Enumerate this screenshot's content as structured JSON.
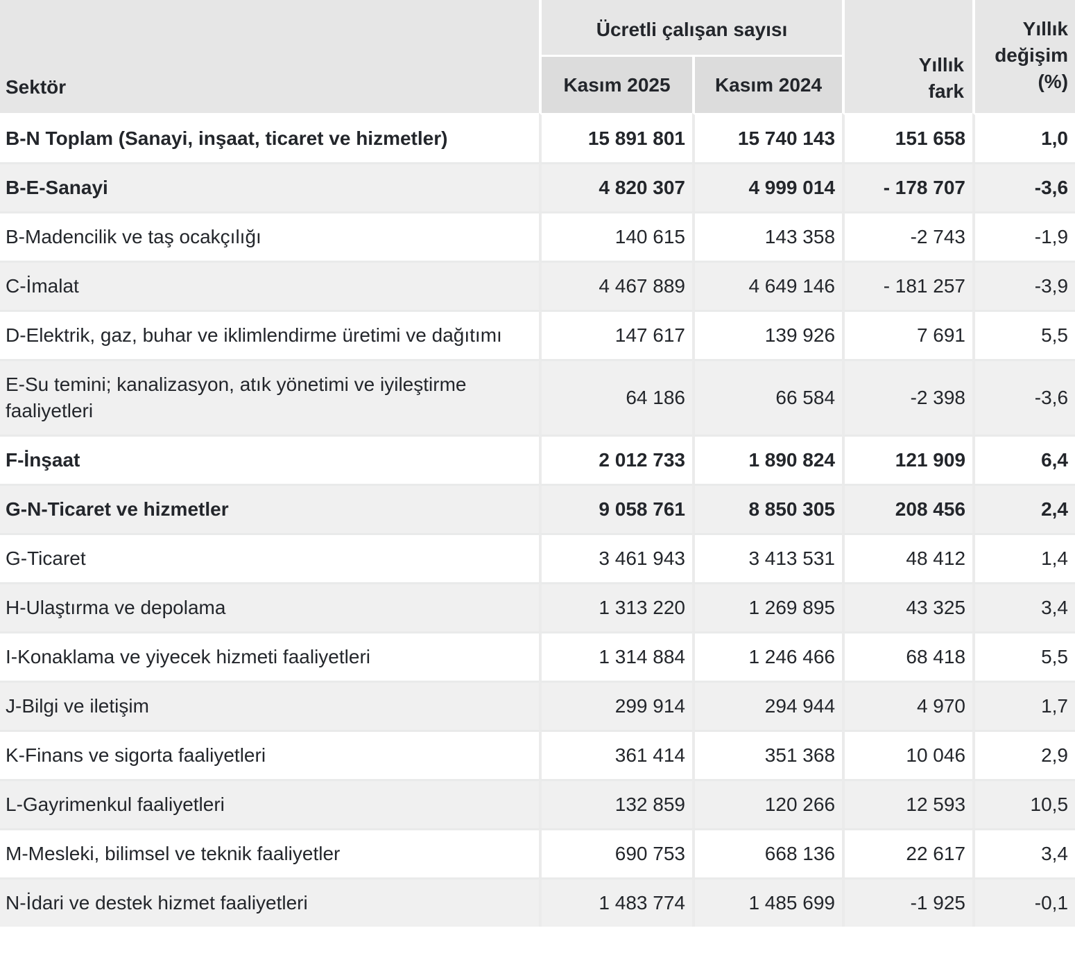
{
  "table": {
    "header": {
      "sektor": "Sektör",
      "ucretli_group": "Ücretli çalışan sayısı",
      "kasim_2025": "Kasım 2025",
      "kasim_2024": "Kasım 2024",
      "yillik_fark": "Yıllık\nfark",
      "yillik_degisim": "Yıllık\ndeğişim\n(%)"
    },
    "rows": [
      {
        "label": "B-N Toplam (Sanayi, inşaat, ticaret ve hizmetler)",
        "kasim_2025": "15 891 801",
        "kasim_2024": "15 740 143",
        "yillik_fark": "151 658",
        "yillik_degisim_pct": "1,0",
        "bold": true
      },
      {
        "label": "B-E-Sanayi",
        "kasim_2025": "4 820 307",
        "kasim_2024": "4 999 014",
        "yillik_fark": "- 178 707",
        "yillik_degisim_pct": "-3,6",
        "bold": true
      },
      {
        "label": "B-Madencilik ve taş ocakçılığı",
        "kasim_2025": "140 615",
        "kasim_2024": "143 358",
        "yillik_fark": "-2 743",
        "yillik_degisim_pct": "-1,9",
        "bold": false
      },
      {
        "label": "C-İmalat",
        "kasim_2025": "4 467 889",
        "kasim_2024": "4 649 146",
        "yillik_fark": "- 181 257",
        "yillik_degisim_pct": "-3,9",
        "bold": false
      },
      {
        "label": "D-Elektrik, gaz, buhar ve iklimlendirme üretimi ve dağıtımı",
        "kasim_2025": "147 617",
        "kasim_2024": "139 926",
        "yillik_fark": "7 691",
        "yillik_degisim_pct": "5,5",
        "bold": false
      },
      {
        "label": "E-Su temini; kanalizasyon, atık yönetimi ve iyileştirme faaliyetleri",
        "kasim_2025": "64 186",
        "kasim_2024": "66 584",
        "yillik_fark": "-2 398",
        "yillik_degisim_pct": "-3,6",
        "bold": false
      },
      {
        "label": "F-İnşaat",
        "kasim_2025": "2 012 733",
        "kasim_2024": "1 890 824",
        "yillik_fark": "121 909",
        "yillik_degisim_pct": "6,4",
        "bold": true
      },
      {
        "label": "G-N-Ticaret ve hizmetler",
        "kasim_2025": "9 058 761",
        "kasim_2024": "8 850 305",
        "yillik_fark": "208 456",
        "yillik_degisim_pct": "2,4",
        "bold": true
      },
      {
        "label": "G-Ticaret",
        "kasim_2025": "3 461 943",
        "kasim_2024": "3 413 531",
        "yillik_fark": "48 412",
        "yillik_degisim_pct": "1,4",
        "bold": false
      },
      {
        "label": "H-Ulaştırma ve depolama",
        "kasim_2025": "1 313 220",
        "kasim_2024": "1 269 895",
        "yillik_fark": "43 325",
        "yillik_degisim_pct": "3,4",
        "bold": false
      },
      {
        "label": "I-Konaklama ve yiyecek hizmeti faaliyetleri",
        "kasim_2025": "1 314 884",
        "kasim_2024": "1 246 466",
        "yillik_fark": "68 418",
        "yillik_degisim_pct": "5,5",
        "bold": false
      },
      {
        "label": "J-Bilgi ve iletişim",
        "kasim_2025": "299 914",
        "kasim_2024": "294 944",
        "yillik_fark": "4 970",
        "yillik_degisim_pct": "1,7",
        "bold": false
      },
      {
        "label": "K-Finans ve sigorta faaliyetleri",
        "kasim_2025": "361 414",
        "kasim_2024": "351 368",
        "yillik_fark": "10 046",
        "yillik_degisim_pct": "2,9",
        "bold": false
      },
      {
        "label": "L-Gayrimenkul faaliyetleri",
        "kasim_2025": "132 859",
        "kasim_2024": "120 266",
        "yillik_fark": "12 593",
        "yillik_degisim_pct": "10,5",
        "bold": false
      },
      {
        "label": "M-Mesleki, bilimsel ve teknik faaliyetler",
        "kasim_2025": "690 753",
        "kasim_2024": "668 136",
        "yillik_fark": "22 617",
        "yillik_degisim_pct": "3,4",
        "bold": false
      },
      {
        "label": "N-İdari ve destek hizmet faaliyetleri",
        "kasim_2025": "1 483 774",
        "kasim_2024": "1 485 699",
        "yillik_fark": "-1 925",
        "yillik_degisim_pct": "-0,1",
        "bold": false
      }
    ],
    "colors": {
      "header_bg": "#e6e6e6",
      "header_sub_bg": "#dcdcdc",
      "zebra_row_bg": "#f0f0f0",
      "row_border": "#e9eaea",
      "column_border": "#ebebeb",
      "text": "#23262b"
    }
  },
  "chart_data": {
    "type": "table",
    "title": "Ücretli çalışan sayısı",
    "columns": [
      "Sektör",
      "Kasım 2025",
      "Kasım 2024",
      "Yıllık fark",
      "Yıllık değişim (%)"
    ],
    "rows": [
      [
        "B-N Toplam (Sanayi, inşaat, ticaret ve hizmetler)",
        15891801,
        15740143,
        151658,
        1.0
      ],
      [
        "B-E-Sanayi",
        4820307,
        4999014,
        -178707,
        -3.6
      ],
      [
        "B-Madencilik ve taş ocakçılığı",
        140615,
        143358,
        -2743,
        -1.9
      ],
      [
        "C-İmalat",
        4467889,
        4649146,
        -181257,
        -3.9
      ],
      [
        "D-Elektrik, gaz, buhar ve iklimlendirme üretimi ve dağıtımı",
        147617,
        139926,
        7691,
        5.5
      ],
      [
        "E-Su temini; kanalizasyon, atık yönetimi ve iyileştirme faaliyetleri",
        64186,
        66584,
        -2398,
        -3.6
      ],
      [
        "F-İnşaat",
        2012733,
        1890824,
        121909,
        6.4
      ],
      [
        "G-N-Ticaret ve hizmetler",
        9058761,
        8850305,
        208456,
        2.4
      ],
      [
        "G-Ticaret",
        3461943,
        3413531,
        48412,
        1.4
      ],
      [
        "H-Ulaştırma ve depolama",
        1313220,
        1269895,
        43325,
        3.4
      ],
      [
        "I-Konaklama ve yiyecek hizmeti faaliyetleri",
        1314884,
        1246466,
        68418,
        5.5
      ],
      [
        "J-Bilgi ve iletişim",
        299914,
        294944,
        4970,
        1.7
      ],
      [
        "K-Finans ve sigorta faaliyetleri",
        361414,
        351368,
        10046,
        2.9
      ],
      [
        "L-Gayrimenkul faaliyetleri",
        132859,
        120266,
        12593,
        10.5
      ],
      [
        "M-Mesleki, bilimsel ve teknik faaliyetler",
        690753,
        668136,
        22617,
        3.4
      ],
      [
        "N-İdari ve destek hizmet faaliyetleri",
        1483774,
        1485699,
        -1925,
        -0.1
      ]
    ]
  }
}
